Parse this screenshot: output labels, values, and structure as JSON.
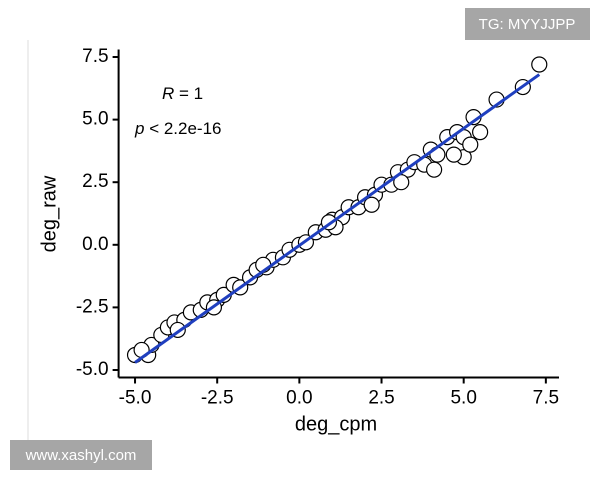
{
  "chart_data": {
    "type": "scatter",
    "x_label": "deg_cpm",
    "y_label": "deg_raw",
    "annotations": [
      {
        "symbol": "R",
        "text": " = 1"
      },
      {
        "symbol": "p",
        "text": " < 2.2e-16"
      }
    ],
    "x": [
      -5.0,
      -4.6,
      -4.5,
      -4.2,
      -4.0,
      -3.8,
      -3.5,
      -3.3,
      -3.0,
      -2.8,
      -2.5,
      -2.3,
      -2.0,
      -1.8,
      -1.5,
      -1.3,
      -1.0,
      -0.8,
      -0.5,
      -0.3,
      0,
      0.2,
      0.5,
      0.8,
      1.0,
      1.3,
      1.5,
      1.8,
      2.0,
      2.3,
      2.5,
      2.8,
      3.0,
      3.3,
      3.5,
      3.8,
      4.0,
      4.2,
      4.5,
      4.8,
      5.0,
      5.0,
      5.2,
      5.5,
      5.3,
      6.0,
      6.8,
      7.3,
      -4.8,
      -3.7,
      -2.6,
      1.1,
      2.2,
      3.1,
      4.1,
      4.7,
      0.9,
      -1.1
    ],
    "values": [
      -4.4,
      -4.4,
      -4.0,
      -3.6,
      -3.3,
      -3.1,
      -3.0,
      -2.7,
      -2.6,
      -2.3,
      -2.2,
      -2.0,
      -1.6,
      -1.7,
      -1.3,
      -1.0,
      -0.9,
      -0.6,
      -0.5,
      -0.2,
      0,
      0.1,
      0.5,
      0.6,
      1.0,
      1.1,
      1.5,
      1.5,
      1.9,
      2.0,
      2.4,
      2.4,
      2.9,
      3.0,
      3.3,
      3.2,
      3.8,
      3.6,
      4.3,
      4.5,
      4.3,
      3.5,
      4.0,
      4.5,
      5.1,
      5.8,
      6.3,
      7.2,
      -4.2,
      -3.4,
      -2.5,
      0.7,
      1.6,
      2.5,
      3.0,
      3.6,
      0.9,
      -0.8
    ],
    "marker_color": "#ffffff",
    "fit_line": {
      "x": [
        -5.0,
        7.3
      ],
      "y": [
        -4.7,
        6.8
      ],
      "color": "#1f3fbf"
    },
    "xlim": [
      -5.5,
      7.9
    ],
    "ylim": [
      -5.3,
      7.8
    ],
    "xticks": [
      {
        "value": -5,
        "label": "-5.0"
      },
      {
        "value": -2.5,
        "label": "-2.5"
      },
      {
        "value": 0,
        "label": "0.0"
      },
      {
        "value": 2.5,
        "label": "2.5"
      },
      {
        "value": 5,
        "label": "5.0"
      },
      {
        "value": 7.5,
        "label": "7.5"
      }
    ],
    "yticks": [
      {
        "value": -5,
        "label": "-5.0"
      },
      {
        "value": -2.5,
        "label": "-2.5"
      },
      {
        "value": 0,
        "label": "0.0"
      },
      {
        "value": 2.5,
        "label": "2.5"
      },
      {
        "value": 5,
        "label": "5.0"
      },
      {
        "value": 7.5,
        "label": "7.5"
      }
    ]
  },
  "watermarks": [
    "TG: MYYJJPP",
    "www.xashyl.com"
  ]
}
